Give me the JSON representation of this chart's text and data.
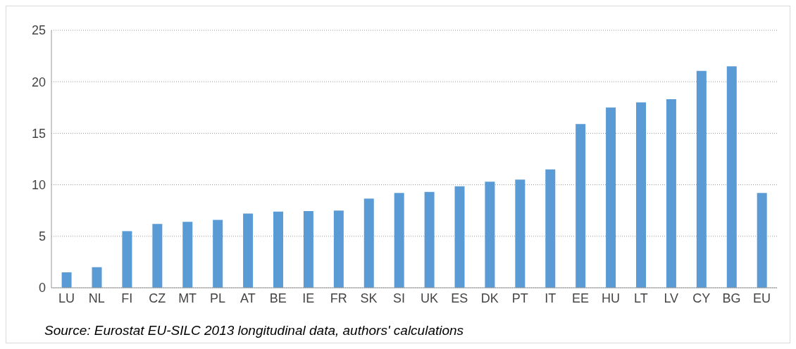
{
  "chart_data": {
    "type": "bar",
    "categories": [
      "LU",
      "NL",
      "FI",
      "CZ",
      "MT",
      "PL",
      "AT",
      "BE",
      "IE",
      "FR",
      "SK",
      "SI",
      "UK",
      "ES",
      "DK",
      "PT",
      "IT",
      "EE",
      "HU",
      "LT",
      "LV",
      "CY",
      "BG",
      "EU"
    ],
    "values": [
      1.5,
      2.0,
      5.5,
      6.2,
      6.4,
      6.6,
      7.2,
      7.4,
      7.45,
      7.5,
      8.65,
      9.2,
      9.3,
      9.85,
      10.3,
      10.5,
      11.5,
      15.9,
      17.5,
      18.0,
      18.3,
      21.05,
      21.5,
      9.2
    ],
    "color": "#5b9bd5",
    "ylim": [
      0,
      25
    ],
    "yticks": [
      0,
      5,
      10,
      15,
      20,
      25
    ],
    "grid": "y",
    "annotations": [
      "Source: Eurostat EU-SILC 2013 longitudinal data, authors' calculations"
    ]
  }
}
